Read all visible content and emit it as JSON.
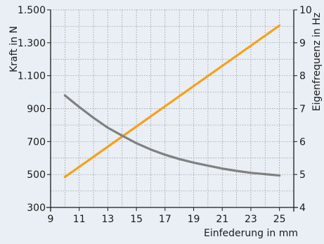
{
  "chart_data": {
    "type": "line",
    "xlabel": "Einfederung in mm",
    "ylabel_left": "Kraft in N",
    "ylabel_right": "Eigenfrequenz in Hz",
    "x_range": [
      9,
      26
    ],
    "x_ticks": [
      9,
      11,
      13,
      15,
      17,
      19,
      21,
      23,
      25
    ],
    "y_left_range": [
      300,
      1500
    ],
    "y_left_ticks": [
      {
        "value": 300,
        "label": "300"
      },
      {
        "value": 500,
        "label": "500"
      },
      {
        "value": 700,
        "label": "700"
      },
      {
        "value": 900,
        "label": "900"
      },
      {
        "value": 1100,
        "label": "1.100"
      },
      {
        "value": 1300,
        "label": "1.300"
      },
      {
        "value": 1500,
        "label": "1.500"
      }
    ],
    "y_right_range": [
      4,
      10
    ],
    "y_right_ticks": [
      4,
      5,
      6,
      7,
      8,
      9,
      10
    ],
    "grid": true,
    "background": "#e9eff5",
    "series": [
      {
        "axis": "left",
        "color": "#f7a11a",
        "x": [
          10,
          25
        ],
        "y": [
          485,
          1405
        ]
      },
      {
        "axis": "right",
        "color": "#808080",
        "x": [
          10,
          11,
          12,
          13,
          14,
          15,
          16,
          17,
          18,
          19,
          20,
          21,
          22,
          23,
          24,
          25
        ],
        "y": [
          7.4,
          7.05,
          6.72,
          6.42,
          6.18,
          5.95,
          5.76,
          5.6,
          5.47,
          5.36,
          5.27,
          5.18,
          5.11,
          5.05,
          5.01,
          4.97
        ]
      }
    ]
  }
}
